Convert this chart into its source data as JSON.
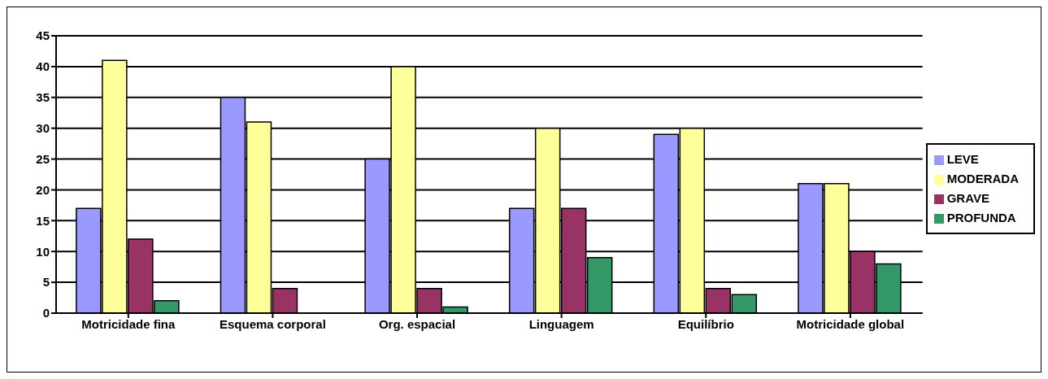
{
  "chart_data": {
    "type": "bar",
    "categories": [
      "Motricidade fina",
      "Esquema corporal",
      "Org. espacial",
      "Linguagem",
      "Equilíbrio",
      "Motricidade global"
    ],
    "series": [
      {
        "name": "LEVE",
        "color": "#9999ff",
        "values": [
          17,
          35,
          25,
          17,
          29,
          21
        ]
      },
      {
        "name": "MODERADA",
        "color": "#ffff99",
        "values": [
          41,
          31,
          40,
          30,
          30,
          21
        ]
      },
      {
        "name": "GRAVE",
        "color": "#993366",
        "values": [
          12,
          4,
          4,
          17,
          4,
          10
        ]
      },
      {
        "name": "PROFUNDA",
        "color": "#339966",
        "values": [
          2,
          0,
          1,
          9,
          3,
          8
        ]
      }
    ],
    "ylim": [
      0,
      45
    ],
    "yticks": [
      0,
      5,
      10,
      15,
      20,
      25,
      30,
      35,
      40,
      45
    ],
    "grid": "y",
    "legend": "right"
  }
}
